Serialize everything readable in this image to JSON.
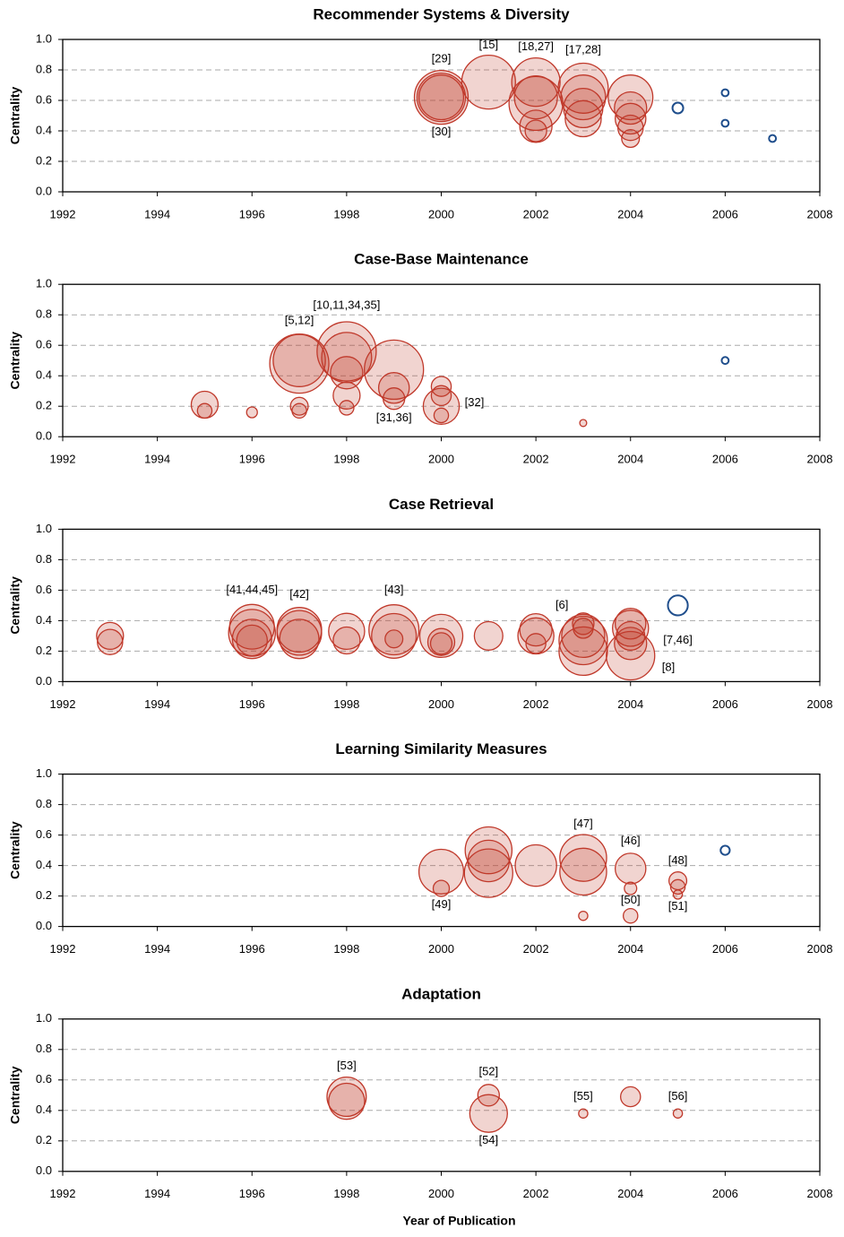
{
  "chart_data": [
    {
      "type": "bubble",
      "title": "Recommender Systems & Diversity",
      "ylabel": "Centrality",
      "xlim": [
        1992,
        2008
      ],
      "xticks": [
        1992,
        1994,
        1996,
        1998,
        2000,
        2002,
        2004,
        2006,
        2008
      ],
      "ylim": [
        0,
        1
      ],
      "yticks": [
        {
          "value": 0,
          "label": "0.0"
        },
        0.2,
        0.4,
        0.6,
        0.8,
        {
          "value": 1,
          "label": "1.0"
        }
      ],
      "grid": true,
      "series": [
        {
          "color": "#c0392b",
          "x": [
            2000,
            2000,
            2000,
            2001,
            2002,
            2002,
            2002,
            2002,
            2002,
            2003,
            2003,
            2003,
            2003,
            2004,
            2004,
            2004,
            2004,
            2004
          ],
          "values": [
            0.62,
            0.62,
            0.62,
            0.72,
            0.72,
            0.58,
            0.62,
            0.43,
            0.4,
            0.68,
            0.62,
            0.55,
            0.48,
            0.62,
            0.55,
            0.48,
            0.42,
            0.35
          ],
          "sizes": [
            10,
            9,
            8.3,
            10,
            9,
            10,
            8,
            6,
            4,
            9.3,
            8.3,
            7.3,
            6.7,
            8.3,
            6,
            5.7,
            4.7,
            3.3
          ]
        },
        {
          "color": "#1f4e8c",
          "x": [
            2005,
            2006,
            2006,
            2007
          ],
          "values": [
            0.55,
            0.65,
            0.45,
            0.35
          ],
          "sizes": [
            2,
            1.3,
            1.3,
            1.3
          ]
        }
      ],
      "annotations": [
        {
          "text": "[29]",
          "x": 2000,
          "y": 0.87
        },
        {
          "text": "[15]",
          "x": 2001,
          "y": 0.96
        },
        {
          "text": "[18,27]",
          "x": 2002,
          "y": 0.95
        },
        {
          "text": "[17,28]",
          "x": 2003,
          "y": 0.93
        },
        {
          "text": "[30]",
          "x": 2000,
          "y": 0.39
        }
      ]
    },
    {
      "type": "bubble",
      "title": "Case-Base Maintenance",
      "ylabel": "Centrality",
      "xlim": [
        1992,
        2008
      ],
      "xticks": [
        1992,
        1994,
        1996,
        1998,
        2000,
        2002,
        2004,
        2006,
        2008
      ],
      "ylim": [
        0,
        1
      ],
      "yticks": [
        {
          "value": 0,
          "label": "0.0"
        },
        0.2,
        0.4,
        0.6,
        0.8,
        {
          "value": 1,
          "label": "1.0"
        }
      ],
      "grid": true,
      "series": [
        {
          "color": "#c0392b",
          "x": [
            1995,
            1995,
            1996,
            1997,
            1997,
            1997,
            1997,
            1998,
            1998,
            1998,
            1998,
            1998,
            1999,
            1999,
            1999,
            2000,
            2000,
            2000,
            2000,
            2003
          ],
          "values": [
            0.21,
            0.17,
            0.16,
            0.48,
            0.5,
            0.2,
            0.17,
            0.56,
            0.52,
            0.42,
            0.27,
            0.19,
            0.44,
            0.32,
            0.25,
            0.33,
            0.27,
            0.2,
            0.14,
            0.09
          ],
          "sizes": [
            5,
            2.7,
            2,
            11,
            9.7,
            3.3,
            2.7,
            11,
            9.3,
            6,
            5,
            2.7,
            11,
            5.7,
            4,
            3.7,
            3.7,
            6.7,
            2.7,
            1.3
          ]
        },
        {
          "color": "#1f4e8c",
          "x": [
            2006
          ],
          "values": [
            0.5
          ],
          "sizes": [
            1.3
          ]
        }
      ],
      "annotations": [
        {
          "text": "[5,12]",
          "x": 1997,
          "y": 0.76
        },
        {
          "text": "[10,11,34,35]",
          "x": 1998,
          "y": 0.86
        },
        {
          "text": "[31,36]",
          "x": 1999,
          "y": 0.12
        },
        {
          "text": "[32]",
          "x": 2000.7,
          "y": 0.22
        }
      ]
    },
    {
      "type": "bubble",
      "title": "Case Retrieval",
      "ylabel": "Centrality",
      "xlim": [
        1992,
        2008
      ],
      "xticks": [
        1992,
        1994,
        1996,
        1998,
        2000,
        2002,
        2004,
        2006,
        2008
      ],
      "ylim": [
        0,
        1
      ],
      "yticks": [
        {
          "value": 0,
          "label": "0.0"
        },
        0.2,
        0.4,
        0.6,
        0.8,
        {
          "value": 1,
          "label": "1.0"
        }
      ],
      "grid": true,
      "series": [
        {
          "color": "#c0392b",
          "x": [
            1993,
            1993,
            1996,
            1996,
            1996,
            1996,
            1997,
            1997,
            1997,
            1998,
            1998,
            1999,
            1999,
            1999,
            2000,
            2000,
            2000,
            2001,
            2002,
            2002,
            2002,
            2003,
            2003,
            2003,
            2003,
            2003,
            2004,
            2004,
            2004,
            2004,
            2004
          ],
          "values": [
            0.3,
            0.26,
            0.36,
            0.32,
            0.28,
            0.27,
            0.34,
            0.32,
            0.28,
            0.33,
            0.27,
            0.34,
            0.3,
            0.28,
            0.3,
            0.26,
            0.25,
            0.3,
            0.34,
            0.3,
            0.25,
            0.38,
            0.35,
            0.3,
            0.27,
            0.2,
            0.38,
            0.35,
            0.3,
            0.25,
            0.17
          ],
          "sizes": [
            5,
            4.7,
            8.3,
            8.7,
            7.3,
            5.7,
            8.3,
            8.3,
            7.3,
            6.7,
            5,
            9.3,
            8.3,
            3.3,
            8,
            5,
            4,
            5.3,
            6,
            6.7,
            3.7,
            4,
            3.7,
            8,
            9,
            9,
            5.7,
            6.7,
            5.3,
            6,
            9
          ]
        },
        {
          "color": "#1f4e8c",
          "x": [
            2005
          ],
          "values": [
            0.5
          ],
          "sizes": [
            3.7
          ]
        }
      ],
      "annotations": [
        {
          "text": "[41,44,45]",
          "x": 1996,
          "y": 0.6
        },
        {
          "text": "[42]",
          "x": 1997,
          "y": 0.57
        },
        {
          "text": "[43]",
          "x": 1999,
          "y": 0.6
        },
        {
          "text": "[6]",
          "x": 2002.55,
          "y": 0.5
        },
        {
          "text": "[7,46]",
          "x": 2005,
          "y": 0.27
        },
        {
          "text": "[8]",
          "x": 2004.8,
          "y": 0.09
        }
      ]
    },
    {
      "type": "bubble",
      "title": "Learning Similarity Measures",
      "ylabel": "Centrality",
      "xlim": [
        1992,
        2008
      ],
      "xticks": [
        1992,
        1994,
        1996,
        1998,
        2000,
        2002,
        2004,
        2006,
        2008
      ],
      "ylim": [
        0,
        1
      ],
      "yticks": [
        {
          "value": 0,
          "label": "0.0"
        },
        0.2,
        0.4,
        0.6,
        0.8,
        {
          "value": 1,
          "label": "1.0"
        }
      ],
      "grid": true,
      "series": [
        {
          "color": "#c0392b",
          "x": [
            2000,
            2000,
            2001,
            2001,
            2001,
            2002,
            2003,
            2003,
            2003,
            2004,
            2004,
            2004,
            2005,
            2005,
            2005
          ],
          "values": [
            0.36,
            0.25,
            0.5,
            0.43,
            0.35,
            0.4,
            0.45,
            0.36,
            0.07,
            0.38,
            0.25,
            0.07,
            0.3,
            0.26,
            0.21
          ],
          "sizes": [
            8.3,
            3,
            8.7,
            7.7,
            9,
            7.7,
            8.7,
            8.7,
            1.7,
            5.7,
            2.3,
            2.7,
            3.3,
            2.7,
            1.7
          ]
        },
        {
          "color": "#1f4e8c",
          "x": [
            2006
          ],
          "values": [
            0.5
          ],
          "sizes": [
            1.7
          ]
        }
      ],
      "annotations": [
        {
          "text": "[49]",
          "x": 2000,
          "y": 0.14
        },
        {
          "text": "[47]",
          "x": 2003,
          "y": 0.67
        },
        {
          "text": "[46]",
          "x": 2004,
          "y": 0.56
        },
        {
          "text": "[50]",
          "x": 2004,
          "y": 0.17
        },
        {
          "text": "[48]",
          "x": 2005,
          "y": 0.43
        },
        {
          "text": "[51]",
          "x": 2005,
          "y": 0.13
        }
      ]
    },
    {
      "type": "bubble",
      "title": "Adaptation",
      "ylabel": "Centrality",
      "xlabel": "Year of Publication",
      "xlim": [
        1992,
        2008
      ],
      "xticks": [
        1992,
        1994,
        1996,
        1998,
        2000,
        2002,
        2004,
        2006,
        2008
      ],
      "ylim": [
        0,
        1
      ],
      "yticks": [
        {
          "value": 0,
          "label": "0.0"
        },
        0.2,
        0.4,
        0.6,
        0.8,
        {
          "value": 1,
          "label": "1.0"
        }
      ],
      "grid": true,
      "series": [
        {
          "color": "#c0392b",
          "x": [
            1998,
            1998,
            2001,
            2001,
            2003,
            2004,
            2005
          ],
          "values": [
            0.49,
            0.46,
            0.5,
            0.38,
            0.38,
            0.49,
            0.38
          ],
          "sizes": [
            7.3,
            6.7,
            4,
            7,
            1.7,
            3.7,
            1.7
          ]
        }
      ],
      "annotations": [
        {
          "text": "[53]",
          "x": 1998,
          "y": 0.69
        },
        {
          "text": "[52]",
          "x": 2001,
          "y": 0.65
        },
        {
          "text": "[54]",
          "x": 2001,
          "y": 0.2
        },
        {
          "text": "[55]",
          "x": 2003,
          "y": 0.49
        },
        {
          "text": "[56]",
          "x": 2005,
          "y": 0.49
        }
      ]
    }
  ]
}
